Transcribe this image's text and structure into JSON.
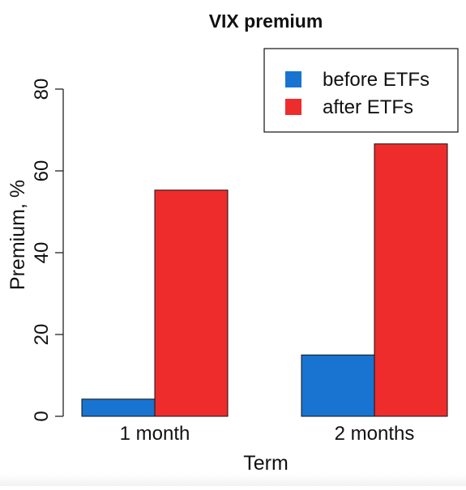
{
  "chart_data": {
    "type": "bar",
    "title": "VIX premium",
    "xlabel": "Term",
    "ylabel": "Premium, %",
    "categories": [
      "1 month",
      "2 months"
    ],
    "series": [
      {
        "name": "before ETFs",
        "color": "#1874D0",
        "values": [
          4.2,
          15.0
        ]
      },
      {
        "name": "after ETFs",
        "color": "#EE2C2C",
        "values": [
          55.3,
          66.6
        ]
      }
    ],
    "ylim": [
      0,
      80
    ],
    "yticks": [
      0,
      20,
      40,
      60,
      80
    ],
    "grid": false,
    "legend_position": "top-right"
  }
}
